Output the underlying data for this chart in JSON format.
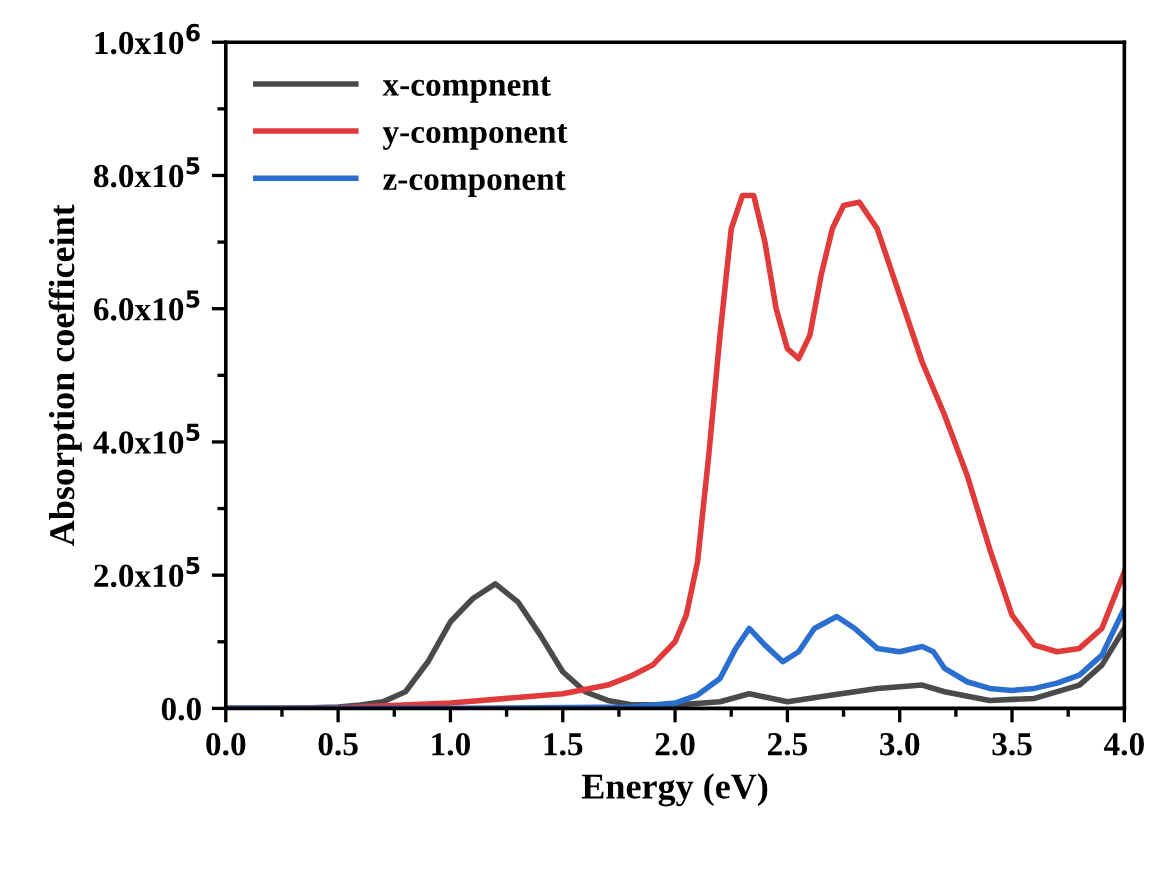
{
  "chart_data": {
    "type": "line",
    "xlabel": "Energy (eV)",
    "ylabel": "Absorption coefficeint",
    "xlim": [
      0,
      4
    ],
    "xticks": [
      {
        "value": 0,
        "label": "0.0"
      },
      0.5,
      {
        "value": 1,
        "label": "1.0"
      },
      1.5,
      {
        "value": 2,
        "label": "2.0"
      },
      2.5,
      {
        "value": 3,
        "label": "3.0"
      },
      3.5,
      {
        "value": 4,
        "label": "4.0"
      }
    ],
    "ylim": [
      0,
      1000000
    ],
    "yticks": [
      {
        "value": 0,
        "label": "0.0"
      },
      {
        "value": 200000,
        "label": "2.0x10$^{5}$"
      },
      {
        "value": 400000,
        "label": "4.0x10$^{5}$"
      },
      {
        "value": 600000,
        "label": "6.0x10$^{5}$"
      },
      {
        "value": 800000,
        "label": "8.0x10$^{5}$"
      },
      {
        "value": 1000000,
        "label": "1.0x10$^{6}$"
      }
    ],
    "grid": false,
    "legend": "top left",
    "marker": "none",
    "line_style": "solid",
    "series": [
      {
        "name": "x-compnent",
        "color": "#4a4a4a",
        "x": [
          0,
          0.3,
          0.5,
          0.6,
          0.7,
          0.8,
          0.9,
          1.0,
          1.1,
          1.2,
          1.3,
          1.4,
          1.5,
          1.6,
          1.7,
          1.8,
          2.0,
          2.2,
          2.33,
          2.5,
          2.7,
          2.9,
          3.1,
          3.2,
          3.4,
          3.6,
          3.8,
          3.9,
          4.0
        ],
        "values": [
          0,
          0,
          2000,
          5000,
          10000,
          25000,
          70000,
          130000,
          165000,
          187000,
          160000,
          110000,
          55000,
          25000,
          12000,
          6000,
          5000,
          10000,
          22000,
          10000,
          20000,
          30000,
          35000,
          25000,
          12000,
          15000,
          35000,
          65000,
          120000
        ]
      },
      {
        "name": "y-component",
        "color": "#e03a3a",
        "x": [
          0,
          0.5,
          1.0,
          1.5,
          1.7,
          1.8,
          1.9,
          2.0,
          2.05,
          2.1,
          2.15,
          2.2,
          2.25,
          2.3,
          2.35,
          2.4,
          2.45,
          2.5,
          2.55,
          2.6,
          2.65,
          2.7,
          2.75,
          2.82,
          2.9,
          3.0,
          3.1,
          3.2,
          3.3,
          3.4,
          3.5,
          3.6,
          3.7,
          3.8,
          3.9,
          4.0
        ],
        "values": [
          0,
          1000,
          8000,
          22000,
          35000,
          48000,
          65000,
          100000,
          140000,
          220000,
          380000,
          560000,
          720000,
          770000,
          770000,
          700000,
          600000,
          540000,
          525000,
          560000,
          650000,
          720000,
          755000,
          760000,
          720000,
          620000,
          520000,
          440000,
          350000,
          240000,
          140000,
          95000,
          85000,
          90000,
          120000,
          205000
        ]
      },
      {
        "name": "z-component",
        "color": "#2a6fd0",
        "x": [
          0,
          1.0,
          1.8,
          2.0,
          2.1,
          2.2,
          2.27,
          2.33,
          2.4,
          2.48,
          2.55,
          2.62,
          2.72,
          2.8,
          2.9,
          3.0,
          3.1,
          3.15,
          3.2,
          3.3,
          3.4,
          3.5,
          3.6,
          3.7,
          3.8,
          3.9,
          4.0
        ],
        "values": [
          0,
          0,
          2000,
          8000,
          20000,
          45000,
          90000,
          120000,
          95000,
          70000,
          85000,
          120000,
          138000,
          120000,
          90000,
          85000,
          93000,
          85000,
          60000,
          40000,
          30000,
          27000,
          30000,
          38000,
          50000,
          80000,
          150000
        ]
      }
    ]
  }
}
